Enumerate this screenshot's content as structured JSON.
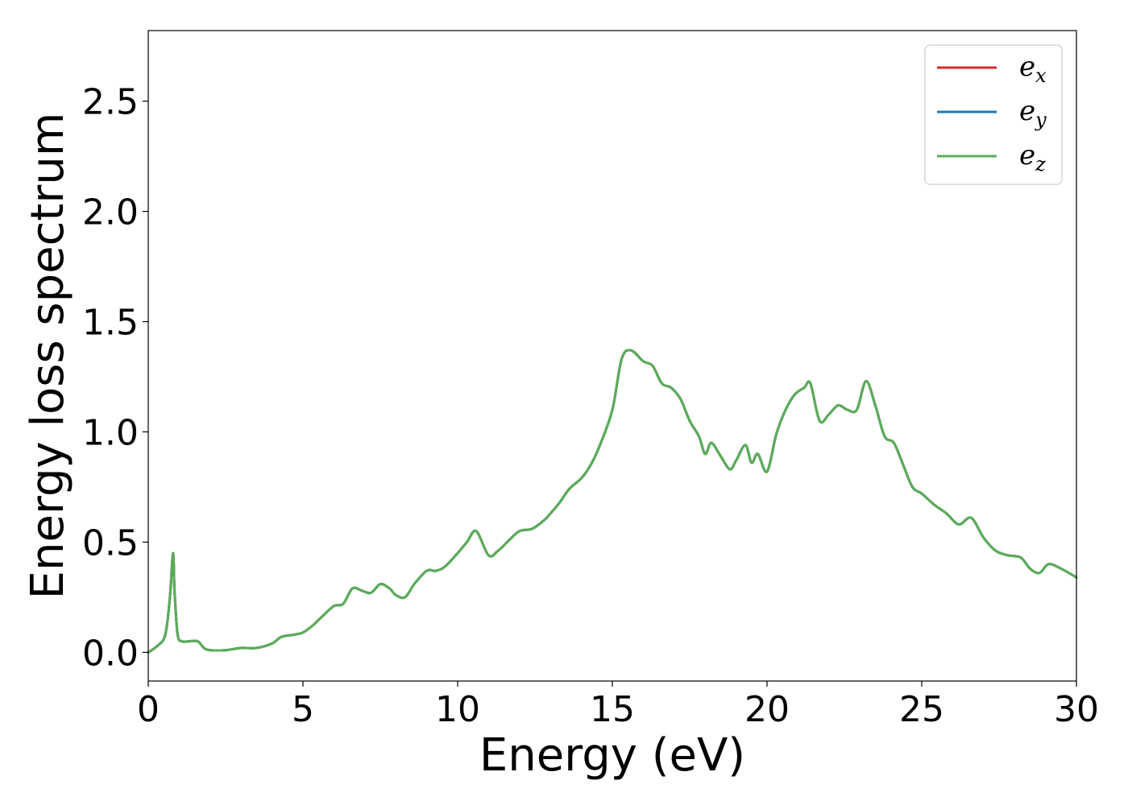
{
  "chart_data": {
    "type": "line",
    "title": "",
    "xlabel": "Energy (eV)",
    "ylabel": "Energy loss spectrum",
    "xlim": [
      0,
      30
    ],
    "ylim": [
      -0.13,
      2.82
    ],
    "xticks": [
      0,
      5,
      10,
      15,
      20,
      25,
      30
    ],
    "xtick_labels": [
      "0",
      "5",
      "10",
      "15",
      "20",
      "25",
      "30"
    ],
    "yticks": [
      0.0,
      0.5,
      1.0,
      1.5,
      2.0,
      2.5
    ],
    "ytick_labels": [
      "0.0",
      "0.5",
      "1.0",
      "1.5",
      "2.0",
      "2.5"
    ],
    "grid": false,
    "legend_position": "top-right",
    "series": [
      {
        "name": "e_x",
        "label_base": "e",
        "label_sub": "x",
        "color": "#d62728",
        "x": [
          0.0,
          0.3,
          0.55,
          0.7,
          0.8,
          0.85,
          0.95,
          1.1,
          1.3,
          1.6,
          1.8,
          2.0,
          2.5,
          3.0,
          3.5,
          4.0,
          4.3,
          4.7,
          5.0,
          5.3,
          5.6,
          6.0,
          6.3,
          6.6,
          6.9,
          7.2,
          7.5,
          7.8,
          8.0,
          8.3,
          8.6,
          9.0,
          9.3,
          9.6,
          10.0,
          10.3,
          10.6,
          11.0,
          11.3,
          11.6,
          12.0,
          12.4,
          12.8,
          13.0,
          13.3,
          13.6,
          14.0,
          14.3,
          14.6,
          15.0,
          15.3,
          15.6,
          16.0,
          16.3,
          16.6,
          16.9,
          17.2,
          17.5,
          17.8,
          18.0,
          18.2,
          18.5,
          18.8,
          19.0,
          19.3,
          19.5,
          19.7,
          20.0,
          20.3,
          20.6,
          20.9,
          21.2,
          21.4,
          21.7,
          22.0,
          22.3,
          22.6,
          22.9,
          23.2,
          23.5,
          23.8,
          24.1,
          24.4,
          24.7,
          25.0,
          25.4,
          25.8,
          26.2,
          26.6,
          27.0,
          27.4,
          27.8,
          28.2,
          28.5,
          28.8,
          29.1,
          29.5,
          30.0
        ],
        "y": [
          0.0,
          0.03,
          0.08,
          0.25,
          0.45,
          0.28,
          0.08,
          0.05,
          0.05,
          0.05,
          0.02,
          0.01,
          0.01,
          0.02,
          0.02,
          0.04,
          0.07,
          0.08,
          0.09,
          0.12,
          0.16,
          0.21,
          0.22,
          0.29,
          0.28,
          0.27,
          0.31,
          0.29,
          0.26,
          0.25,
          0.31,
          0.37,
          0.37,
          0.39,
          0.45,
          0.5,
          0.55,
          0.44,
          0.46,
          0.5,
          0.55,
          0.56,
          0.6,
          0.63,
          0.68,
          0.74,
          0.79,
          0.85,
          0.94,
          1.1,
          1.33,
          1.37,
          1.32,
          1.3,
          1.22,
          1.2,
          1.15,
          1.05,
          0.98,
          0.9,
          0.95,
          0.89,
          0.83,
          0.87,
          0.94,
          0.86,
          0.9,
          0.82,
          0.99,
          1.1,
          1.17,
          1.2,
          1.22,
          1.05,
          1.08,
          1.12,
          1.1,
          1.1,
          1.23,
          1.12,
          0.98,
          0.95,
          0.85,
          0.75,
          0.72,
          0.67,
          0.63,
          0.58,
          0.61,
          0.52,
          0.46,
          0.44,
          0.43,
          0.38,
          0.36,
          0.4,
          0.38,
          0.34
        ]
      },
      {
        "name": "e_y",
        "label_base": "e",
        "label_sub": "y",
        "color": "#1f77b4",
        "x": [
          0.0,
          0.3,
          0.55,
          0.7,
          0.8,
          0.85,
          0.95,
          1.1,
          1.3,
          1.6,
          1.8,
          2.0,
          2.5,
          3.0,
          3.5,
          4.0,
          4.3,
          4.7,
          5.0,
          5.3,
          5.6,
          6.0,
          6.3,
          6.6,
          6.9,
          7.2,
          7.5,
          7.8,
          8.0,
          8.3,
          8.6,
          9.0,
          9.3,
          9.6,
          10.0,
          10.3,
          10.6,
          11.0,
          11.3,
          11.6,
          12.0,
          12.4,
          12.8,
          13.0,
          13.3,
          13.6,
          14.0,
          14.3,
          14.6,
          15.0,
          15.3,
          15.6,
          16.0,
          16.3,
          16.6,
          16.9,
          17.2,
          17.5,
          17.8,
          18.0,
          18.2,
          18.5,
          18.8,
          19.0,
          19.3,
          19.5,
          19.7,
          20.0,
          20.3,
          20.6,
          20.9,
          21.2,
          21.4,
          21.7,
          22.0,
          22.3,
          22.6,
          22.9,
          23.2,
          23.5,
          23.8,
          24.1,
          24.4,
          24.7,
          25.0,
          25.4,
          25.8,
          26.2,
          26.6,
          27.0,
          27.4,
          27.8,
          28.2,
          28.5,
          28.8,
          29.1,
          29.5,
          30.0
        ],
        "y": [
          0.0,
          0.03,
          0.08,
          0.25,
          0.45,
          0.28,
          0.08,
          0.05,
          0.05,
          0.05,
          0.02,
          0.01,
          0.01,
          0.02,
          0.02,
          0.04,
          0.07,
          0.08,
          0.09,
          0.12,
          0.16,
          0.21,
          0.22,
          0.29,
          0.28,
          0.27,
          0.31,
          0.29,
          0.26,
          0.25,
          0.31,
          0.37,
          0.37,
          0.39,
          0.45,
          0.5,
          0.55,
          0.44,
          0.46,
          0.5,
          0.55,
          0.56,
          0.6,
          0.63,
          0.68,
          0.74,
          0.79,
          0.85,
          0.94,
          1.1,
          1.33,
          1.37,
          1.32,
          1.3,
          1.22,
          1.2,
          1.15,
          1.05,
          0.98,
          0.9,
          0.95,
          0.89,
          0.83,
          0.87,
          0.94,
          0.86,
          0.9,
          0.82,
          0.99,
          1.1,
          1.17,
          1.2,
          1.22,
          1.05,
          1.08,
          1.12,
          1.1,
          1.1,
          1.23,
          1.12,
          0.98,
          0.95,
          0.85,
          0.75,
          0.72,
          0.67,
          0.63,
          0.58,
          0.61,
          0.52,
          0.46,
          0.44,
          0.43,
          0.38,
          0.36,
          0.4,
          0.38,
          0.34
        ]
      },
      {
        "name": "e_z",
        "label_base": "e",
        "label_sub": "z",
        "color": "#5aad57",
        "x": [
          0.0,
          0.3,
          0.55,
          0.7,
          0.8,
          0.85,
          0.95,
          1.1,
          1.3,
          1.6,
          1.8,
          2.0,
          2.5,
          3.0,
          3.5,
          4.0,
          4.3,
          4.7,
          5.0,
          5.3,
          5.6,
          6.0,
          6.3,
          6.6,
          6.9,
          7.2,
          7.5,
          7.8,
          8.0,
          8.3,
          8.6,
          9.0,
          9.3,
          9.6,
          10.0,
          10.3,
          10.6,
          11.0,
          11.3,
          11.6,
          12.0,
          12.4,
          12.8,
          13.0,
          13.3,
          13.6,
          14.0,
          14.3,
          14.6,
          15.0,
          15.3,
          15.6,
          16.0,
          16.3,
          16.6,
          16.9,
          17.2,
          17.5,
          17.8,
          18.0,
          18.2,
          18.5,
          18.8,
          19.0,
          19.3,
          19.5,
          19.7,
          20.0,
          20.3,
          20.6,
          20.9,
          21.2,
          21.4,
          21.7,
          22.0,
          22.3,
          22.6,
          22.9,
          23.2,
          23.5,
          23.8,
          24.1,
          24.4,
          24.7,
          25.0,
          25.4,
          25.8,
          26.2,
          26.6,
          27.0,
          27.4,
          27.8,
          28.2,
          28.5,
          28.8,
          29.1,
          29.5,
          30.0
        ],
        "y": [
          0.0,
          0.03,
          0.08,
          0.25,
          0.45,
          0.28,
          0.08,
          0.05,
          0.05,
          0.05,
          0.02,
          0.01,
          0.01,
          0.02,
          0.02,
          0.04,
          0.07,
          0.08,
          0.09,
          0.12,
          0.16,
          0.21,
          0.22,
          0.29,
          0.28,
          0.27,
          0.31,
          0.29,
          0.26,
          0.25,
          0.31,
          0.37,
          0.37,
          0.39,
          0.45,
          0.5,
          0.55,
          0.44,
          0.46,
          0.5,
          0.55,
          0.56,
          0.6,
          0.63,
          0.68,
          0.74,
          0.79,
          0.85,
          0.94,
          1.1,
          1.33,
          1.37,
          1.32,
          1.3,
          1.22,
          1.2,
          1.15,
          1.05,
          0.98,
          0.9,
          0.95,
          0.89,
          0.83,
          0.87,
          0.94,
          0.86,
          0.9,
          0.82,
          0.99,
          1.1,
          1.17,
          1.2,
          1.22,
          1.05,
          1.08,
          1.12,
          1.1,
          1.1,
          1.23,
          1.12,
          0.98,
          0.95,
          0.85,
          0.75,
          0.72,
          0.67,
          0.63,
          0.58,
          0.61,
          0.52,
          0.46,
          0.44,
          0.43,
          0.38,
          0.36,
          0.4,
          0.38,
          0.34
        ]
      }
    ]
  }
}
